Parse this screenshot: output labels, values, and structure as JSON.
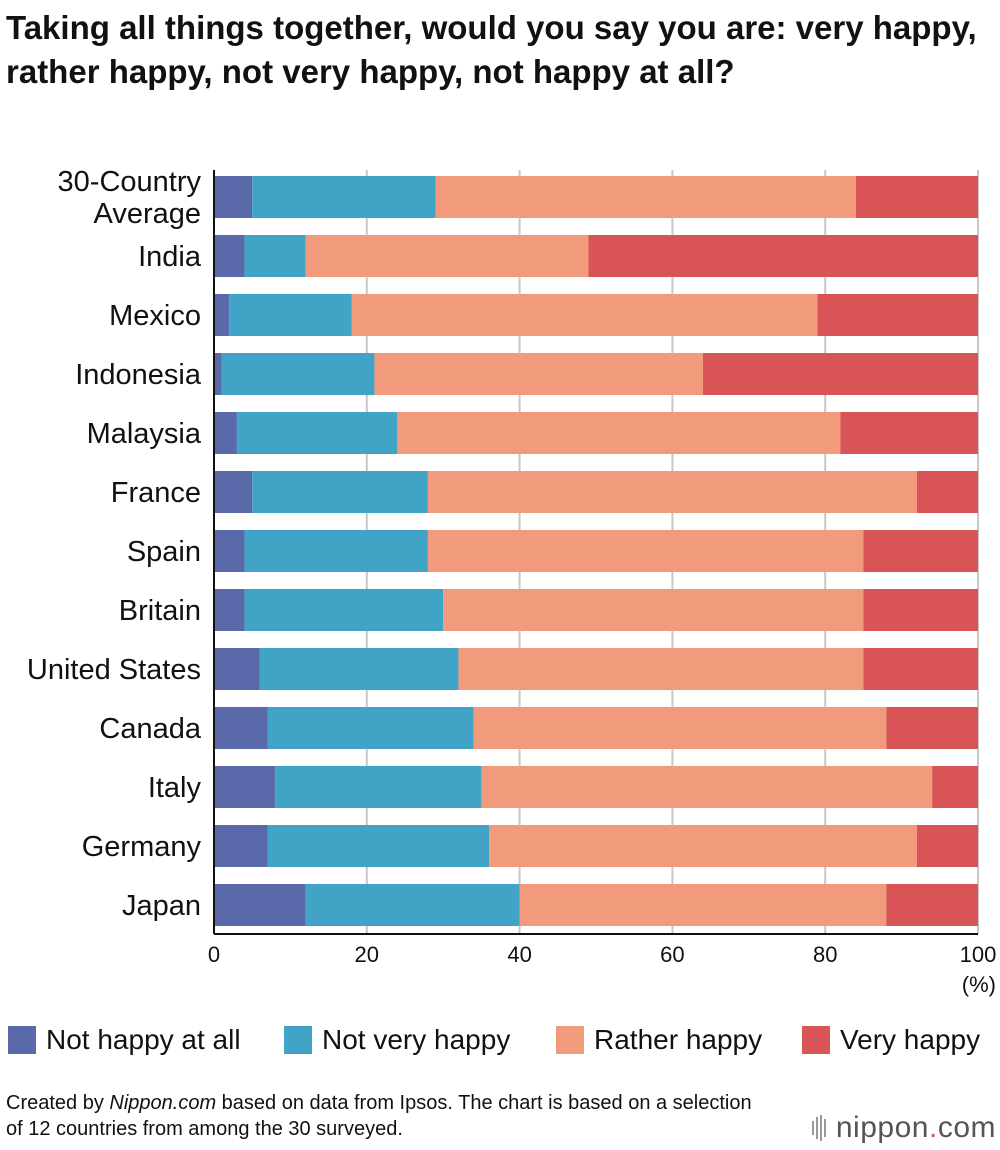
{
  "title": "Taking all things together, would you say you are: very happy, rather happy, not very happy, not happy at all?",
  "legend": [
    {
      "label": "Not happy at all",
      "color": "#5a69a9"
    },
    {
      "label": "Not very happy",
      "color": "#41a3c6"
    },
    {
      "label": "Rather happy",
      "color": "#f19b7c"
    },
    {
      "label": "Very happy",
      "color": "#d95457"
    }
  ],
  "footnote": {
    "part1": "Created by ",
    "part2": "Nippon.com",
    "part3": " based on data from Ipsos. The chart is based on a selection of 12 countries from among the 30 surveyed."
  },
  "brand": {
    "name": "nippon",
    "dot": ".",
    "tld": "com",
    "dot_color": "#d95457"
  },
  "chart_data": {
    "type": "bar",
    "orientation": "horizontal",
    "stacked": true,
    "title": "Taking all things together, would you say you are: very happy, rather happy, not very happy, not happy at all?",
    "xlabel": "",
    "ylabel": "",
    "xlim": [
      0,
      100
    ],
    "x_ticks": [
      "0",
      "20",
      "40",
      "60",
      "80",
      "100"
    ],
    "x_unit": "(%)",
    "grid": true,
    "legend_position": "bottom",
    "categories": [
      [
        "30-Country",
        "Average"
      ],
      [
        "India"
      ],
      [
        "Mexico"
      ],
      [
        "Indonesia"
      ],
      [
        "Malaysia"
      ],
      [
        "France"
      ],
      [
        "Spain"
      ],
      [
        "Britain"
      ],
      [
        "United States"
      ],
      [
        "Canada"
      ],
      [
        "Italy"
      ],
      [
        "Germany"
      ],
      [
        "Japan"
      ]
    ],
    "series": [
      {
        "name": "Not happy at all",
        "color": "#5a69a9",
        "values": [
          5,
          4,
          2,
          1,
          3,
          5,
          4,
          4,
          6,
          7,
          8,
          7,
          12
        ]
      },
      {
        "name": "Not very happy",
        "color": "#41a3c6",
        "values": [
          24,
          8,
          16,
          20,
          21,
          23,
          24,
          26,
          26,
          27,
          27,
          29,
          28
        ]
      },
      {
        "name": "Rather happy",
        "color": "#f19b7c",
        "values": [
          55,
          37,
          61,
          43,
          58,
          64,
          57,
          55,
          53,
          54,
          59,
          56,
          48
        ]
      },
      {
        "name": "Very happy",
        "color": "#d95457",
        "values": [
          16,
          51,
          21,
          36,
          18,
          8,
          15,
          15,
          15,
          12,
          6,
          8,
          12
        ]
      }
    ]
  }
}
